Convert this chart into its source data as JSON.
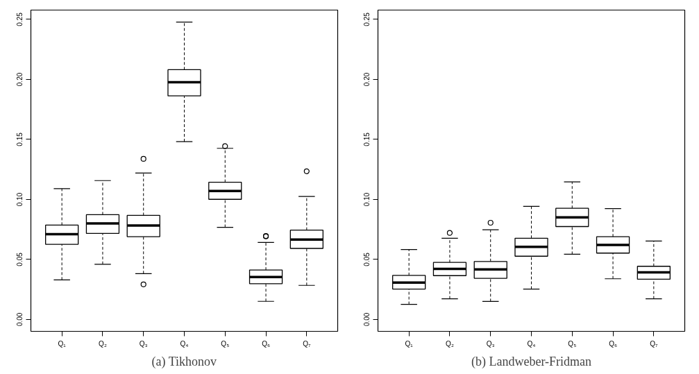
{
  "chart_data": [
    {
      "type": "box",
      "title": "(a) Tikhonov",
      "categories": [
        "Q₁",
        "Q₂",
        "Q₃",
        "Q₄",
        "Q₅",
        "Q₆",
        "Q₇"
      ],
      "ylim": [
        -0.0099,
        0.2578
      ],
      "yticks": [
        {
          "value": 0,
          "label": "0.00"
        },
        {
          "value": 0.05,
          "label": "0.05"
        },
        {
          "value": 0.1,
          "label": "0.10"
        },
        {
          "value": 0.15,
          "label": "0.15"
        },
        {
          "value": 0.2,
          "label": "0.20"
        },
        {
          "value": 0.25,
          "label": "0.25"
        }
      ],
      "boxes": [
        {
          "low": 0.033,
          "q1": 0.0626,
          "median": 0.071,
          "q3": 0.0786,
          "high": 0.109
        },
        {
          "low": 0.046,
          "q1": 0.0717,
          "median": 0.08,
          "q3": 0.0873,
          "high": 0.1157
        },
        {
          "low": 0.0382,
          "q1": 0.069,
          "median": 0.0783,
          "q3": 0.0867,
          "high": 0.122,
          "outliers": [
            0.1338,
            0.0292
          ]
        },
        {
          "low": 0.1482,
          "q1": 0.1863,
          "median": 0.1977,
          "q3": 0.2081,
          "high": 0.2478
        },
        {
          "low": 0.0768,
          "q1": 0.1001,
          "median": 0.1071,
          "q3": 0.1143,
          "high": 0.1426,
          "outliers": [
            0.1444
          ]
        },
        {
          "low": 0.0151,
          "q1": 0.0298,
          "median": 0.0354,
          "q3": 0.0412,
          "high": 0.0642,
          "outliers": [
            0.0692,
            0.0696
          ]
        },
        {
          "low": 0.0284,
          "q1": 0.0592,
          "median": 0.0666,
          "q3": 0.0744,
          "high": 0.1025,
          "outliers": [
            0.1235
          ]
        }
      ],
      "grid": false
    },
    {
      "type": "box",
      "title": "(b) Landweber-Fridman",
      "categories": [
        "Q₁",
        "Q₂",
        "Q₃",
        "Q₄",
        "Q₅",
        "Q₆",
        "Q₇"
      ],
      "ylim": [
        -0.0099,
        0.2578
      ],
      "yticks": [
        {
          "value": 0,
          "label": "0.00"
        },
        {
          "value": 0.05,
          "label": "0.05"
        },
        {
          "value": 0.1,
          "label": "0.10"
        },
        {
          "value": 0.15,
          "label": "0.15"
        },
        {
          "value": 0.2,
          "label": "0.20"
        },
        {
          "value": 0.25,
          "label": "0.25"
        }
      ],
      "boxes": [
        {
          "low": 0.0126,
          "q1": 0.0253,
          "median": 0.0307,
          "q3": 0.0367,
          "high": 0.0583
        },
        {
          "low": 0.0172,
          "q1": 0.0365,
          "median": 0.0421,
          "q3": 0.0475,
          "high": 0.0677,
          "outliers": [
            0.0721
          ]
        },
        {
          "low": 0.015,
          "q1": 0.0343,
          "median": 0.0417,
          "q3": 0.0483,
          "high": 0.0747,
          "outliers": [
            0.0806
          ]
        },
        {
          "low": 0.0253,
          "q1": 0.0527,
          "median": 0.0605,
          "q3": 0.0677,
          "high": 0.0942
        },
        {
          "low": 0.0543,
          "q1": 0.0774,
          "median": 0.085,
          "q3": 0.0926,
          "high": 0.1146
        },
        {
          "low": 0.0339,
          "q1": 0.0553,
          "median": 0.0621,
          "q3": 0.0689,
          "high": 0.0924
        },
        {
          "low": 0.0172,
          "q1": 0.0335,
          "median": 0.0393,
          "q3": 0.0443,
          "high": 0.0653
        }
      ],
      "grid": false
    }
  ]
}
